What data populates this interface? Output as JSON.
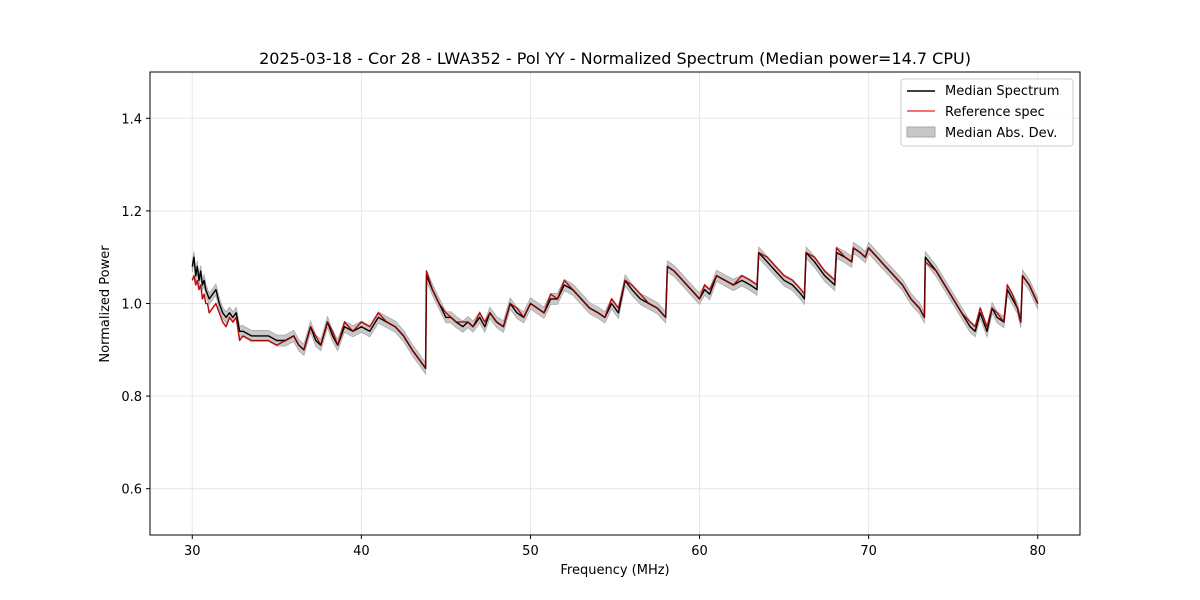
{
  "chart_data": {
    "type": "line",
    "title": "2025-03-18 - Cor 28 - LWA352 - Pol YY - Normalized Spectrum (Median power=14.7 CPU)",
    "xlabel": "Frequency (MHz)",
    "ylabel": "Normalized Power",
    "xlim": [
      27.5,
      82.5
    ],
    "ylim": [
      0.5,
      1.5
    ],
    "xticks": [
      30,
      40,
      50,
      60,
      70,
      80
    ],
    "yticks": [
      0.6,
      0.8,
      1.0,
      1.2,
      1.4
    ],
    "xtick_labels": [
      "30",
      "40",
      "50",
      "60",
      "70",
      "80"
    ],
    "ytick_labels": [
      "0.6",
      "0.8",
      "1.0",
      "1.2",
      "1.4"
    ],
    "grid": true,
    "legend_position": "top-right",
    "mad_width": 0.012,
    "colors": {
      "median": "#000000",
      "reference": "#ee4444",
      "mad_fill": "#c8c8c8",
      "mad_edge": "#a8a8a8",
      "grid": "#e6e6e6"
    },
    "series": [
      {
        "name": "Median Spectrum",
        "x": [
          30.0,
          30.1,
          30.2,
          30.3,
          30.4,
          30.5,
          30.6,
          30.7,
          30.8,
          30.9,
          31.0,
          31.2,
          31.4,
          31.6,
          31.8,
          32.0,
          32.2,
          32.4,
          32.6,
          32.8,
          33.0,
          33.5,
          34.0,
          34.5,
          35.0,
          35.5,
          36.0,
          36.3,
          36.6,
          37.0,
          37.3,
          37.6,
          38.0,
          38.3,
          38.6,
          39.0,
          39.5,
          40.0,
          40.5,
          41.0,
          41.5,
          42.0,
          42.5,
          43.0,
          43.4,
          43.8,
          43.85,
          44.2,
          44.6,
          45.0,
          45.3,
          45.6,
          46.0,
          46.3,
          46.6,
          47.0,
          47.3,
          47.6,
          48.0,
          48.4,
          48.8,
          49.2,
          49.6,
          50.0,
          50.4,
          50.8,
          51.2,
          51.6,
          52.0,
          52.5,
          53.0,
          53.5,
          54.0,
          54.4,
          54.8,
          55.2,
          55.6,
          56.0,
          56.5,
          57.0,
          57.5,
          58.0,
          58.1,
          58.5,
          59.0,
          59.5,
          60.0,
          60.3,
          60.6,
          61.0,
          61.5,
          62.0,
          62.5,
          63.0,
          63.4,
          63.5,
          64.0,
          64.5,
          65.0,
          65.5,
          66.0,
          66.2,
          66.3,
          66.8,
          67.4,
          68.0,
          68.1,
          68.6,
          69.0,
          69.1,
          69.5,
          69.8,
          70.0,
          70.5,
          71.0,
          71.5,
          72.0,
          72.5,
          73.0,
          73.3,
          73.35,
          74.0,
          74.5,
          75.0,
          75.5,
          76.0,
          76.3,
          76.6,
          77.0,
          77.3,
          77.6,
          78.0,
          78.2,
          78.5,
          78.8,
          79.0,
          79.1,
          79.5,
          80.0
        ],
        "values": [
          1.08,
          1.1,
          1.06,
          1.08,
          1.05,
          1.07,
          1.04,
          1.05,
          1.03,
          1.02,
          1.01,
          1.02,
          1.03,
          1.0,
          0.98,
          0.97,
          0.98,
          0.97,
          0.98,
          0.94,
          0.94,
          0.93,
          0.93,
          0.93,
          0.92,
          0.92,
          0.93,
          0.91,
          0.9,
          0.95,
          0.92,
          0.91,
          0.96,
          0.93,
          0.91,
          0.95,
          0.94,
          0.95,
          0.94,
          0.97,
          0.96,
          0.95,
          0.93,
          0.9,
          0.88,
          0.86,
          1.06,
          1.03,
          1.0,
          0.97,
          0.97,
          0.96,
          0.95,
          0.96,
          0.95,
          0.97,
          0.95,
          0.98,
          0.96,
          0.95,
          1.0,
          0.98,
          0.97,
          1.0,
          0.99,
          0.98,
          1.01,
          1.01,
          1.04,
          1.03,
          1.01,
          0.99,
          0.98,
          0.97,
          1.0,
          0.98,
          1.05,
          1.03,
          1.01,
          1.0,
          0.99,
          0.97,
          1.08,
          1.07,
          1.05,
          1.03,
          1.01,
          1.03,
          1.02,
          1.06,
          1.05,
          1.04,
          1.05,
          1.04,
          1.03,
          1.11,
          1.09,
          1.07,
          1.05,
          1.04,
          1.02,
          1.01,
          1.11,
          1.09,
          1.06,
          1.04,
          1.11,
          1.1,
          1.09,
          1.12,
          1.11,
          1.1,
          1.12,
          1.1,
          1.08,
          1.06,
          1.04,
          1.01,
          0.99,
          0.97,
          1.1,
          1.07,
          1.04,
          1.01,
          0.98,
          0.95,
          0.94,
          0.98,
          0.94,
          0.99,
          0.97,
          0.96,
          1.03,
          1.01,
          0.99,
          0.96,
          1.06,
          1.04,
          1.0
        ]
      },
      {
        "name": "Reference spec",
        "x": [
          30.0,
          30.1,
          30.2,
          30.3,
          30.4,
          30.5,
          30.6,
          30.7,
          30.8,
          30.9,
          31.0,
          31.2,
          31.4,
          31.6,
          31.8,
          32.0,
          32.2,
          32.4,
          32.6,
          32.8,
          33.0,
          33.5,
          34.0,
          34.5,
          35.0,
          35.5,
          36.0,
          36.3,
          36.6,
          37.0,
          37.3,
          37.6,
          38.0,
          38.3,
          38.6,
          39.0,
          39.5,
          40.0,
          40.5,
          41.0,
          41.5,
          42.0,
          42.5,
          43.0,
          43.4,
          43.8,
          43.85,
          44.2,
          44.6,
          45.0,
          45.3,
          45.6,
          46.0,
          46.3,
          46.6,
          47.0,
          47.3,
          47.6,
          48.0,
          48.4,
          48.8,
          49.2,
          49.6,
          50.0,
          50.4,
          50.8,
          51.2,
          51.6,
          52.0,
          52.5,
          53.0,
          53.5,
          54.0,
          54.4,
          54.8,
          55.2,
          55.6,
          56.0,
          56.5,
          57.0,
          57.5,
          58.0,
          58.1,
          58.5,
          59.0,
          59.5,
          60.0,
          60.3,
          60.6,
          61.0,
          61.5,
          62.0,
          62.5,
          63.0,
          63.4,
          63.5,
          64.0,
          64.5,
          65.0,
          65.5,
          66.0,
          66.2,
          66.3,
          66.8,
          67.4,
          68.0,
          68.1,
          68.6,
          69.0,
          69.1,
          69.5,
          69.8,
          70.0,
          70.5,
          71.0,
          71.5,
          72.0,
          72.5,
          73.0,
          73.3,
          73.35,
          74.0,
          74.5,
          75.0,
          75.5,
          76.0,
          76.3,
          76.6,
          77.0,
          77.3,
          77.6,
          78.0,
          78.2,
          78.5,
          78.8,
          79.0,
          79.1,
          79.5,
          80.0
        ],
        "values": [
          1.05,
          1.06,
          1.04,
          1.05,
          1.03,
          1.04,
          1.01,
          1.02,
          1.0,
          1.0,
          0.98,
          0.99,
          1.0,
          0.98,
          0.96,
          0.95,
          0.97,
          0.96,
          0.97,
          0.92,
          0.93,
          0.92,
          0.92,
          0.92,
          0.91,
          0.92,
          0.93,
          0.91,
          0.9,
          0.95,
          0.93,
          0.91,
          0.96,
          0.94,
          0.91,
          0.96,
          0.94,
          0.96,
          0.95,
          0.98,
          0.96,
          0.95,
          0.93,
          0.9,
          0.88,
          0.86,
          1.07,
          1.03,
          1.0,
          0.98,
          0.97,
          0.96,
          0.96,
          0.96,
          0.95,
          0.98,
          0.96,
          0.98,
          0.96,
          0.95,
          1.0,
          0.99,
          0.97,
          1.0,
          0.99,
          0.98,
          1.02,
          1.01,
          1.05,
          1.03,
          1.01,
          0.99,
          0.98,
          0.97,
          1.01,
          0.99,
          1.05,
          1.04,
          1.02,
          1.0,
          0.99,
          0.97,
          1.08,
          1.07,
          1.05,
          1.03,
          1.01,
          1.04,
          1.03,
          1.06,
          1.05,
          1.04,
          1.06,
          1.05,
          1.04,
          1.11,
          1.1,
          1.08,
          1.06,
          1.05,
          1.03,
          1.02,
          1.11,
          1.1,
          1.07,
          1.05,
          1.12,
          1.1,
          1.09,
          1.12,
          1.11,
          1.1,
          1.12,
          1.1,
          1.08,
          1.06,
          1.04,
          1.01,
          0.99,
          0.97,
          1.09,
          1.07,
          1.04,
          1.01,
          0.98,
          0.96,
          0.95,
          0.99,
          0.95,
          0.99,
          0.98,
          0.96,
          1.04,
          1.02,
          0.99,
          0.96,
          1.06,
          1.04,
          1.0
        ]
      }
    ],
    "legend": [
      "Median Spectrum",
      "Reference spec",
      "Median Abs. Dev."
    ]
  }
}
